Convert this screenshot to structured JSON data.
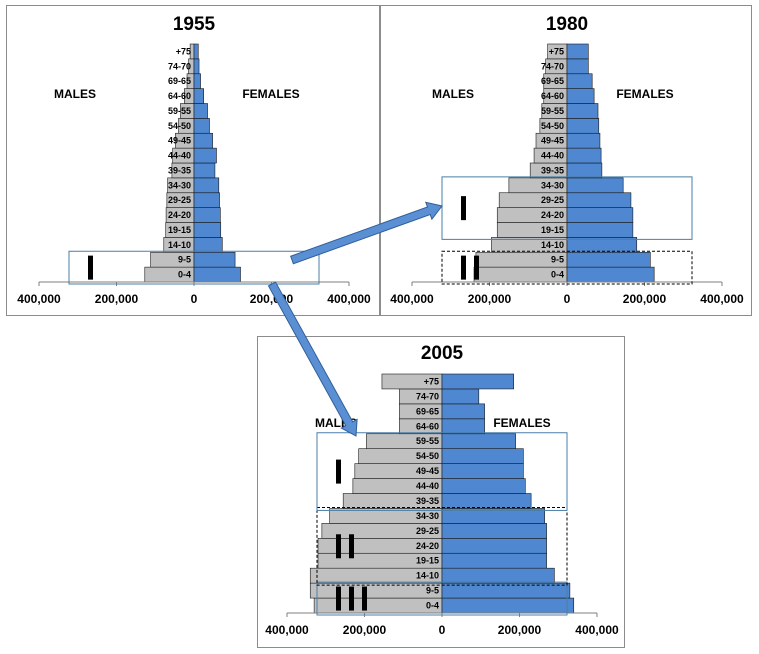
{
  "colors": {
    "male": "#c0c0c0",
    "female": "#4f87d0",
    "arrow": "#5a8fd3",
    "bar_outline": "#1a1a1a",
    "box": "#4a7fa8"
  },
  "chart_data": [
    {
      "type": "bar",
      "subtype": "population-pyramid",
      "title": "1955",
      "male_label": "MALES",
      "female_label": "FEMALES",
      "categories": [
        "0-4",
        "9-5",
        "14-10",
        "19-15",
        "24-20",
        "29-25",
        "34-30",
        "39-35",
        "44-40",
        "49-45",
        "54-50",
        "59-55",
        "64-60",
        "69-65",
        "74-70",
        "+75"
      ],
      "series": [
        {
          "name": "MALES",
          "values": [
            127000,
            112000,
            78000,
            73000,
            72000,
            70000,
            68000,
            57000,
            55000,
            48000,
            40000,
            35000,
            25000,
            18000,
            14000,
            10000
          ]
        },
        {
          "name": "FEMALES",
          "values": [
            120000,
            106000,
            73000,
            69000,
            68000,
            66000,
            64000,
            54000,
            58000,
            48000,
            40000,
            35000,
            25000,
            17000,
            13000,
            11000
          ]
        }
      ],
      "xlim": [
        -400000,
        400000
      ],
      "xticks": [
        "400,000",
        "200,000",
        "0",
        "200,000",
        "400,000"
      ],
      "grid": false,
      "annotations": {
        "roman": [
          [
            "0-4",
            "9-5",
            "I"
          ]
        ]
      }
    },
    {
      "type": "bar",
      "subtype": "population-pyramid",
      "title": "1980",
      "male_label": "MALES",
      "female_label": "FEMALES",
      "categories": [
        "0-4",
        "9-5",
        "14-10",
        "19-15",
        "24-20",
        "29-25",
        "34-30",
        "39-35",
        "44-40",
        "49-45",
        "54-50",
        "59-55",
        "64-60",
        "69-65",
        "74-70",
        "+75"
      ],
      "series": [
        {
          "name": "MALES",
          "values": [
            240000,
            235000,
            195000,
            180000,
            180000,
            175000,
            150000,
            95000,
            85000,
            80000,
            70000,
            65000,
            60000,
            60000,
            55000,
            50000
          ]
        },
        {
          "name": "FEMALES",
          "values": [
            225000,
            215000,
            180000,
            170000,
            170000,
            165000,
            145000,
            90000,
            88000,
            85000,
            82000,
            80000,
            70000,
            65000,
            55000,
            55000
          ]
        }
      ],
      "xlim": [
        -400000,
        400000
      ],
      "xticks": [
        "400,000",
        "200,000",
        "0",
        "200,000",
        "400,000"
      ],
      "grid": false,
      "annotations": {
        "roman": [
          [
            "0-4",
            "9-5",
            "II"
          ],
          [
            "19-15",
            "34-30",
            "I"
          ]
        ]
      }
    },
    {
      "type": "bar",
      "subtype": "population-pyramid",
      "title": "2005",
      "male_label": "MALES",
      "female_label": "FEMALES",
      "categories": [
        "0-4",
        "9-5",
        "14-10",
        "19-15",
        "24-20",
        "29-25",
        "34-30",
        "39-35",
        "44-40",
        "49-45",
        "54-50",
        "59-55",
        "64-60",
        "69-65",
        "74-70",
        "+75"
      ],
      "series": [
        {
          "name": "MALES",
          "values": [
            330000,
            340000,
            340000,
            320000,
            320000,
            310000,
            290000,
            255000,
            230000,
            225000,
            215000,
            195000,
            110000,
            110000,
            110000,
            155000
          ]
        },
        {
          "name": "FEMALES",
          "values": [
            340000,
            330000,
            290000,
            270000,
            270000,
            270000,
            265000,
            230000,
            215000,
            210000,
            210000,
            190000,
            110000,
            110000,
            95000,
            185000
          ]
        }
      ],
      "xlim": [
        -400000,
        400000
      ],
      "xticks": [
        "400,000",
        "200,000",
        "0",
        "200,000",
        "400,000"
      ],
      "grid": false,
      "annotations": {
        "roman": [
          [
            "0-4",
            "9-5",
            "III"
          ],
          [
            "14-10",
            "34-30",
            "II"
          ],
          [
            "39-35",
            "59-55",
            "I"
          ]
        ]
      }
    }
  ]
}
